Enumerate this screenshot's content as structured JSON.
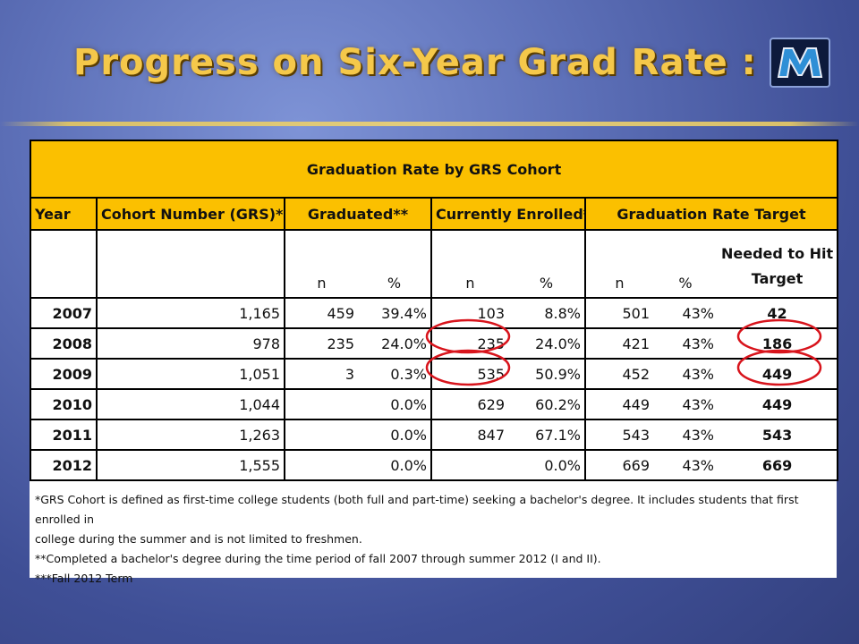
{
  "title": "Progress on Six-Year Grad Rate :",
  "logo_letter": "M",
  "table": {
    "caption": "Graduation Rate by GRS Cohort",
    "group_headers": {
      "year": "Year",
      "cohort": "Cohort Number (GRS)*",
      "graduated": "Graduated**",
      "enrolled": "Currently Enrolled***",
      "target": "Graduation Rate Target"
    },
    "sub_headers": {
      "grad_n": "n",
      "grad_pct": "%",
      "enr_n": "n",
      "enr_pct": "%",
      "tgt_n": "n",
      "tgt_pct": "%",
      "needed_line1": "Needed to Hit",
      "needed_line2": "Target"
    },
    "rows": [
      {
        "year": "2007",
        "cohort": "1,165",
        "grad_n": "459",
        "grad_pct": "39.4%",
        "enr_n": "103",
        "enr_pct": "8.8%",
        "tgt_n": "501",
        "tgt_pct": "43%",
        "needed": "42"
      },
      {
        "year": "2008",
        "cohort": "978",
        "grad_n": "235",
        "grad_pct": "24.0%",
        "enr_n": "235",
        "enr_pct": "24.0%",
        "tgt_n": "421",
        "tgt_pct": "43%",
        "needed": "186"
      },
      {
        "year": "2009",
        "cohort": "1,051",
        "grad_n": "3",
        "grad_pct": "0.3%",
        "enr_n": "535",
        "enr_pct": "50.9%",
        "tgt_n": "452",
        "tgt_pct": "43%",
        "needed": "449"
      },
      {
        "year": "2010",
        "cohort": "1,044",
        "grad_n": "",
        "grad_pct": "0.0%",
        "enr_n": "629",
        "enr_pct": "60.2%",
        "tgt_n": "449",
        "tgt_pct": "43%",
        "needed": "449"
      },
      {
        "year": "2011",
        "cohort": "1,263",
        "grad_n": "",
        "grad_pct": "0.0%",
        "enr_n": "847",
        "enr_pct": "67.1%",
        "tgt_n": "543",
        "tgt_pct": "43%",
        "needed": "543"
      },
      {
        "year": "2012",
        "cohort": "1,555",
        "grad_n": "",
        "grad_pct": "0.0%",
        "enr_n": "",
        "enr_pct": "0.0%",
        "tgt_n": "669",
        "tgt_pct": "43%",
        "needed": "669"
      }
    ]
  },
  "footnotes": [
    "*GRS Cohort is defined as first-time college students (both full and part-time) seeking a bachelor's degree.  It includes students that first enrolled in",
    "college during the summer and is not limited to freshmen.",
    "**Completed a bachelor's degree during the time period of fall 2007 through summer 2012 (I and II).",
    "***Fall 2012 Term"
  ],
  "highlight_color": "#d8141c"
}
